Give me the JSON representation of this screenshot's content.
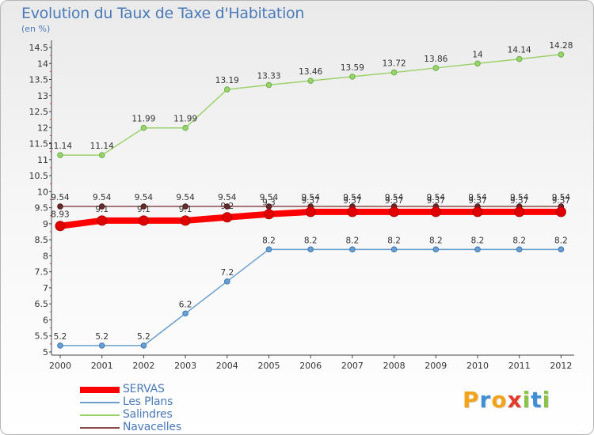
{
  "title": "Evolution du Taux de Taxe d'Habitation",
  "unit_label": "(en %)",
  "logo": {
    "text": "Proxiti",
    "letters": [
      "P",
      "r",
      "o",
      "x",
      "i",
      "t",
      "i"
    ],
    "colors": [
      "#f2a31b",
      "#3f8fd6",
      "#f2a31b",
      "#e23a2b",
      "#8bc34a",
      "#3f8fd6",
      "#8bc34a"
    ]
  },
  "chart_data": {
    "type": "line",
    "title": "Evolution du Taux de Taxe d'Habitation",
    "ylabel": "(en %)",
    "xlabel": "",
    "x": [
      "2000",
      "2001",
      "2002",
      "2003",
      "2004",
      "2005",
      "2006",
      "2007",
      "2008",
      "2009",
      "2010",
      "2011",
      "2012"
    ],
    "ylim": [
      5,
      14.5
    ],
    "yticks": [
      "5",
      "5.5",
      "6",
      "6.5",
      "7",
      "7.5",
      "8",
      "8.5",
      "9",
      "9.5",
      "10",
      "10.5",
      "11",
      "11.5",
      "12",
      "12.5",
      "13",
      "13.5",
      "14",
      "14.5"
    ],
    "grid": false,
    "legend_position": "bottom-left",
    "series": [
      {
        "name": "SERVAS",
        "color": "#ff0000",
        "values": [
          8.93,
          9.1,
          9.1,
          9.1,
          9.2,
          9.3,
          9.37,
          9.37,
          9.37,
          9.37,
          9.37,
          9.37,
          9.37
        ],
        "labels": [
          "8.93",
          "9.1",
          "9.1",
          "9.1",
          "9.2",
          "9.3",
          "9.37",
          "9.37",
          "9.37",
          "9.37",
          "9.37",
          "9.37",
          "9.37"
        ]
      },
      {
        "name": "Les Plans",
        "color": "#6a9fcf",
        "values": [
          5.2,
          5.2,
          5.2,
          6.2,
          7.2,
          8.2,
          8.2,
          8.2,
          8.2,
          8.2,
          8.2,
          8.2,
          8.2
        ],
        "labels": [
          "5.2",
          "5.2",
          "5.2",
          "6.2",
          "7.2",
          "8.2",
          "8.2",
          "8.2",
          "8.2",
          "8.2",
          "8.2",
          "8.2",
          "8.2"
        ]
      },
      {
        "name": "Salindres",
        "color": "#9bd36a",
        "values": [
          11.14,
          11.14,
          11.99,
          11.99,
          13.19,
          13.33,
          13.46,
          13.59,
          13.72,
          13.86,
          14,
          14.14,
          14.28
        ],
        "labels": [
          "11.14",
          "11.14",
          "11.99",
          "11.99",
          "13.19",
          "13.33",
          "13.46",
          "13.59",
          "13.72",
          "13.86",
          "14",
          "14.14",
          "14.28"
        ]
      },
      {
        "name": "Navacelles",
        "color": "#8b4a4a",
        "values": [
          9.54,
          9.54,
          9.54,
          9.54,
          9.54,
          9.54,
          9.54,
          9.54,
          9.54,
          9.54,
          9.54,
          9.54,
          9.54
        ],
        "labels": [
          "9.54",
          "9.54",
          "9.54",
          "9.54",
          "9.54",
          "9.54",
          "9.54",
          "9.54",
          "9.54",
          "9.54",
          "9.54",
          "9.54",
          "9.54"
        ]
      }
    ]
  }
}
